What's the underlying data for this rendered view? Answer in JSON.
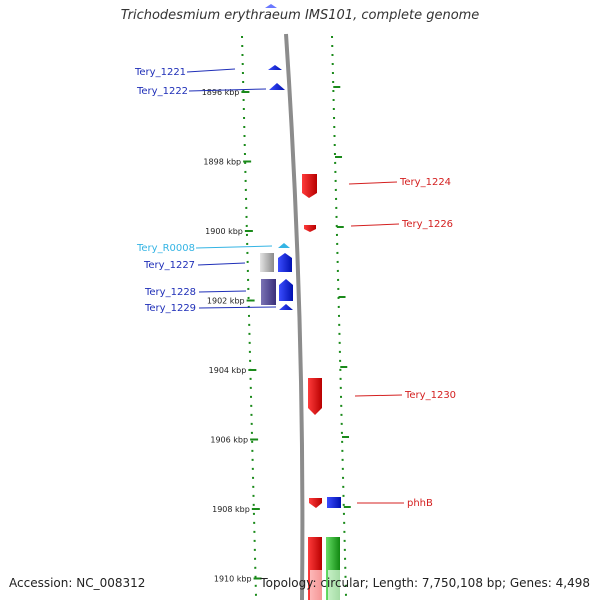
{
  "title": "Trichodesmium erythraeum IMS101, complete genome",
  "footer": {
    "accession": "Accession: NC_008312",
    "details": "Topology: circular; Length: 7,750,108 bp; Genes: 4,498"
  },
  "ticks": [
    {
      "label": "1896 kbp",
      "kbp": 1896
    },
    {
      "label": "1898 kbp",
      "kbp": 1898
    },
    {
      "label": "1900 kbp",
      "kbp": 1900
    },
    {
      "label": "1902 kbp",
      "kbp": 1902
    },
    {
      "label": "1904 kbp",
      "kbp": 1904
    },
    {
      "label": "1906 kbp",
      "kbp": 1906
    },
    {
      "label": "1908 kbp",
      "kbp": 1908
    },
    {
      "label": "1910 kbp",
      "kbp": 1910
    }
  ],
  "genes": [
    {
      "name": "Tery_1221",
      "side": "left",
      "color": "#1f2fb8"
    },
    {
      "name": "Tery_1222",
      "side": "left",
      "color": "#1f2fb8"
    },
    {
      "name": "Tery_R0008",
      "side": "left",
      "color": "#34b4e4"
    },
    {
      "name": "Tery_1227",
      "side": "left",
      "color": "#1f2fb8"
    },
    {
      "name": "Tery_1228",
      "side": "left",
      "color": "#1f2fb8"
    },
    {
      "name": "Tery_1229",
      "side": "left",
      "color": "#1f2fb8"
    },
    {
      "name": "Tery_1224",
      "side": "right",
      "color": "#d42020"
    },
    {
      "name": "Tery_1226",
      "side": "right",
      "color": "#d42020"
    },
    {
      "name": "Tery_1230",
      "side": "right",
      "color": "#d42020"
    },
    {
      "name": "phhB",
      "side": "right",
      "color": "#d42020"
    }
  ]
}
